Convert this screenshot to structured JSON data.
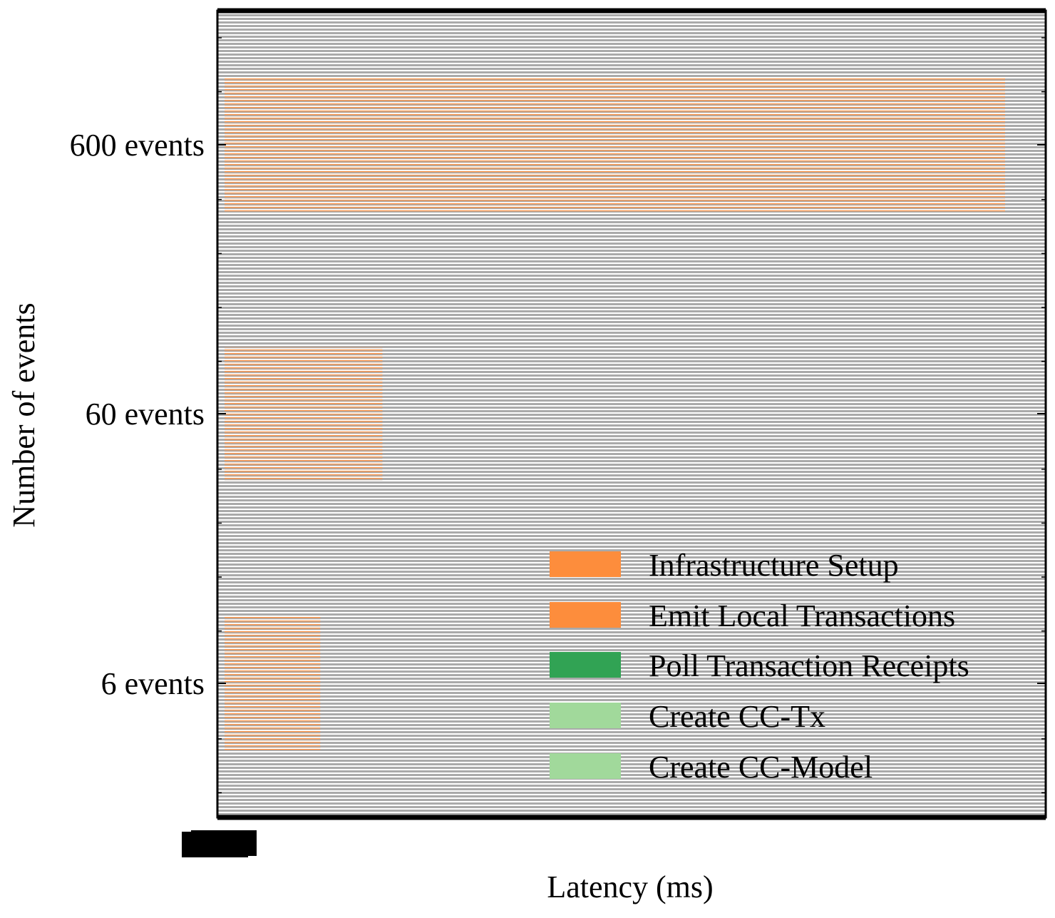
{
  "chart_data": {
    "type": "bar",
    "orientation": "horizontal",
    "stacked": true,
    "title": "",
    "xlabel": "Latency (ms)",
    "ylabel": "Number of events",
    "categories": [
      "6 events",
      "60 events",
      "600 events"
    ],
    "xlim": [
      0,
      2300
    ],
    "x_tick_labels_note": "tick labels overlap near x=0 and are illegible",
    "series": [
      {
        "name": "Infrastructure Setup",
        "color": "#fd8d3c",
        "values": [
          270,
          445,
          2200
        ]
      },
      {
        "name": "Emit Local Transactions",
        "color": "#fd8d3c",
        "values": [
          0,
          0,
          0
        ]
      },
      {
        "name": "Poll Transaction Receipts",
        "color": "#31a354",
        "values": [
          0,
          0,
          0
        ]
      },
      {
        "name": "Create CC-Tx",
        "color": "#a1d99b",
        "values": [
          0,
          0,
          0
        ]
      },
      {
        "name": "Create CC-Model",
        "color": "#a1d99b",
        "values": [
          0,
          0,
          0
        ]
      }
    ],
    "legend_position": "lower-right",
    "hatch": "horizontal-lines",
    "hatch_color": "#aaaaaa",
    "grid": false
  }
}
